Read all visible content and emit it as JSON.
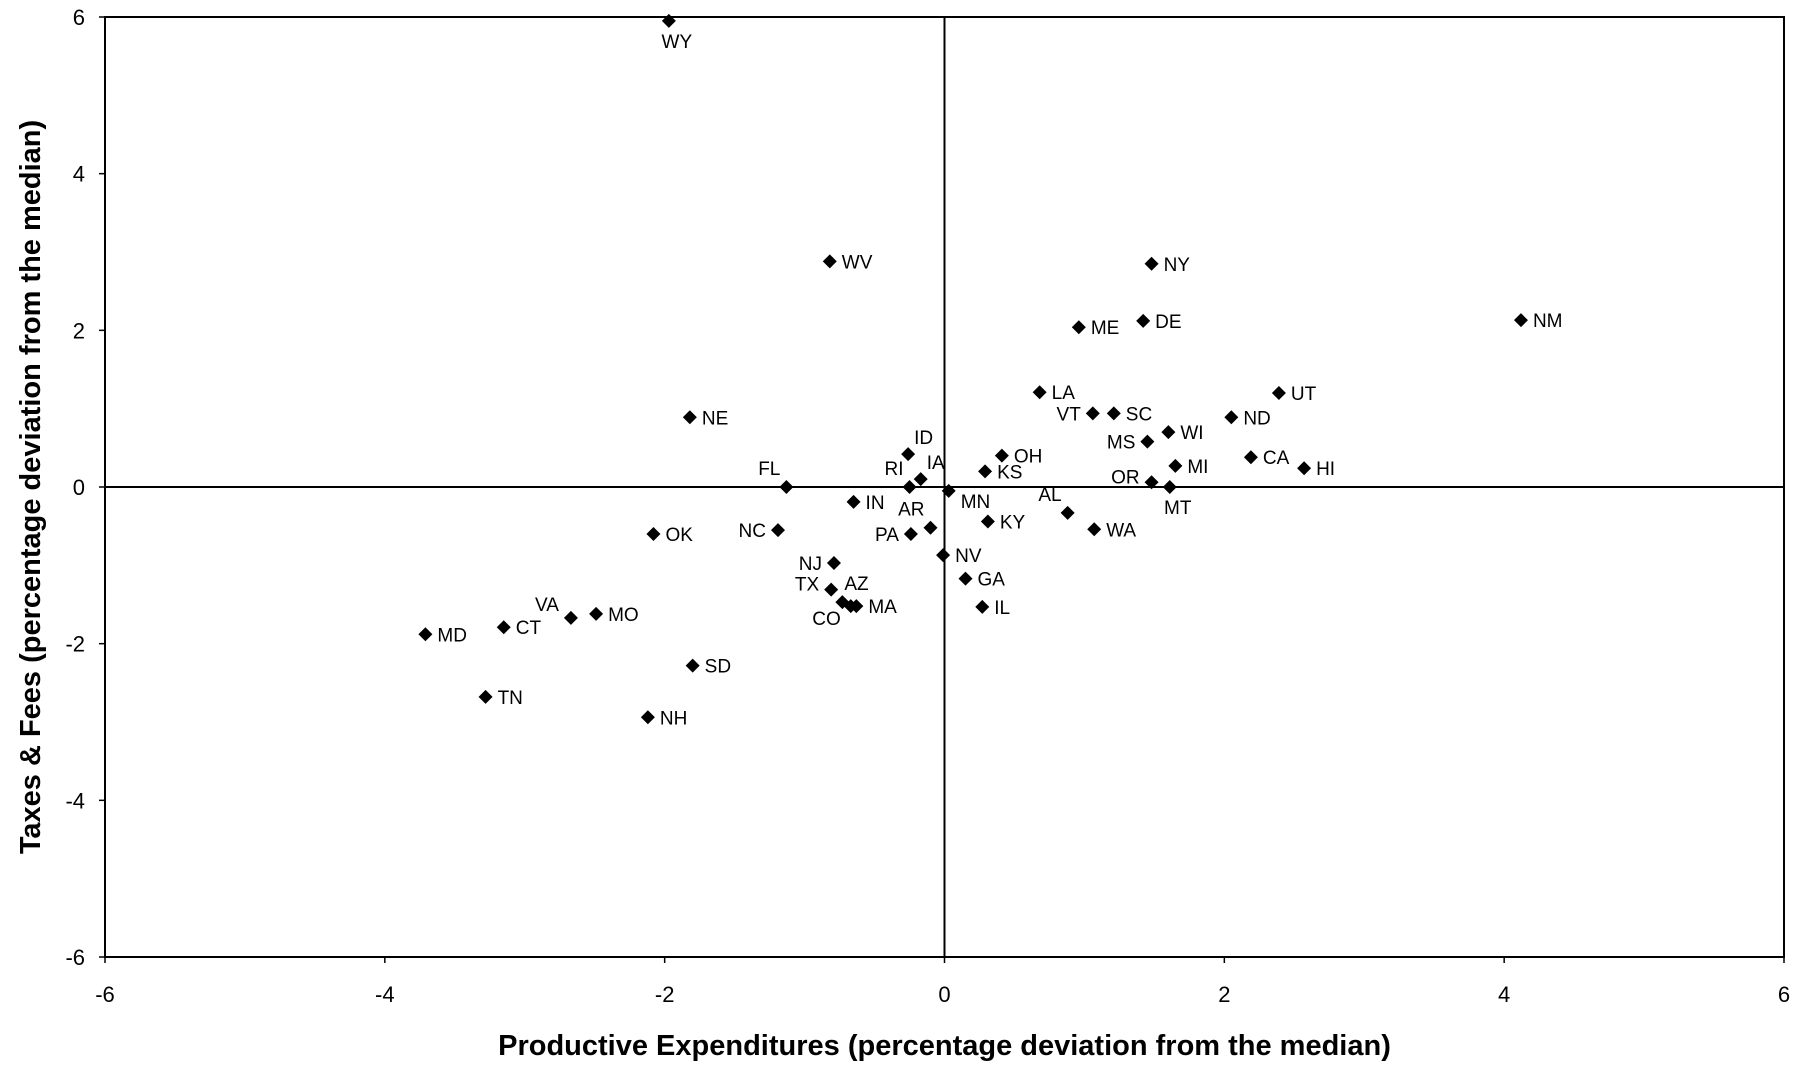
{
  "chart_data": {
    "type": "scatter",
    "title": "",
    "xlabel": "Productive Expenditures (percentage deviation from the median)",
    "ylabel": "Taxes & Fees (percentage deviation from the median)",
    "xlim": [
      -6,
      6
    ],
    "ylim": [
      -6,
      6
    ],
    "xticks": [
      "-6",
      "-4",
      "-2",
      "0",
      "2",
      "4",
      "6"
    ],
    "yticks": [
      "6",
      "4",
      "2",
      "0",
      "-2",
      "-4",
      "-6"
    ],
    "grid": false,
    "reference_lines": [
      "x = 0",
      "y = 0"
    ],
    "marker": "diamond",
    "marker_color": "#000000",
    "points": [
      {
        "label": "WY",
        "x": -1.97,
        "y": 5.95
      },
      {
        "label": "WV",
        "x": -0.82,
        "y": 2.88
      },
      {
        "label": "NY",
        "x": 1.48,
        "y": 2.85
      },
      {
        "label": "NM",
        "x": 4.12,
        "y": 2.13
      },
      {
        "label": "DE",
        "x": 1.42,
        "y": 2.12
      },
      {
        "label": "ME",
        "x": 0.96,
        "y": 2.04
      },
      {
        "label": "LA",
        "x": 0.68,
        "y": 1.21
      },
      {
        "label": "UT",
        "x": 2.39,
        "y": 1.2
      },
      {
        "label": "VT",
        "x": 1.06,
        "y": 0.94
      },
      {
        "label": "SC",
        "x": 1.21,
        "y": 0.94
      },
      {
        "label": "NE",
        "x": -1.82,
        "y": 0.89
      },
      {
        "label": "ND",
        "x": 2.05,
        "y": 0.89
      },
      {
        "label": "WI",
        "x": 1.6,
        "y": 0.7
      },
      {
        "label": "MS",
        "x": 1.45,
        "y": 0.58
      },
      {
        "label": "ID",
        "x": -0.26,
        "y": 0.42
      },
      {
        "label": "OH",
        "x": 0.41,
        "y": 0.4
      },
      {
        "label": "CA",
        "x": 2.19,
        "y": 0.38
      },
      {
        "label": "MI",
        "x": 1.65,
        "y": 0.27
      },
      {
        "label": "HI",
        "x": 2.57,
        "y": 0.24
      },
      {
        "label": "KS",
        "x": 0.29,
        "y": 0.2
      },
      {
        "label": "IA",
        "x": -0.17,
        "y": 0.1
      },
      {
        "label": "OR",
        "x": 1.48,
        "y": 0.06
      },
      {
        "label": "FL",
        "x": -1.13,
        "y": 0.0
      },
      {
        "label": "RI",
        "x": -0.25,
        "y": 0.0
      },
      {
        "label": "MT",
        "x": 1.61,
        "y": 0.0
      },
      {
        "label": "MN",
        "x": 0.03,
        "y": -0.05
      },
      {
        "label": "IN",
        "x": -0.65,
        "y": -0.19
      },
      {
        "label": "AL",
        "x": 0.88,
        "y": -0.33
      },
      {
        "label": "KY",
        "x": 0.31,
        "y": -0.44
      },
      {
        "label": "AR",
        "x": -0.1,
        "y": -0.52
      },
      {
        "label": "NC",
        "x": -1.19,
        "y": -0.55
      },
      {
        "label": "WA",
        "x": 1.07,
        "y": -0.54
      },
      {
        "label": "OK",
        "x": -2.08,
        "y": -0.6
      },
      {
        "label": "PA",
        "x": -0.24,
        "y": -0.6
      },
      {
        "label": "NV",
        "x": -0.01,
        "y": -0.87
      },
      {
        "label": "NJ",
        "x": -0.79,
        "y": -0.97
      },
      {
        "label": "GA",
        "x": 0.15,
        "y": -1.17
      },
      {
        "label": "TX",
        "x": -0.81,
        "y": -1.31
      },
      {
        "label": "AZ",
        "x": -0.73,
        "y": -1.47
      },
      {
        "label": "CO",
        "x": -0.67,
        "y": -1.52
      },
      {
        "label": "MA",
        "x": -0.63,
        "y": -1.52
      },
      {
        "label": "IL",
        "x": 0.27,
        "y": -1.53
      },
      {
        "label": "MO",
        "x": -2.49,
        "y": -1.62
      },
      {
        "label": "VA",
        "x": -2.67,
        "y": -1.67
      },
      {
        "label": "CT",
        "x": -3.15,
        "y": -1.79
      },
      {
        "label": "MD",
        "x": -3.71,
        "y": -1.88
      },
      {
        "label": "SD",
        "x": -1.8,
        "y": -2.28
      },
      {
        "label": "TN",
        "x": -3.28,
        "y": -2.68
      },
      {
        "label": "NH",
        "x": -2.12,
        "y": -2.94
      }
    ]
  }
}
